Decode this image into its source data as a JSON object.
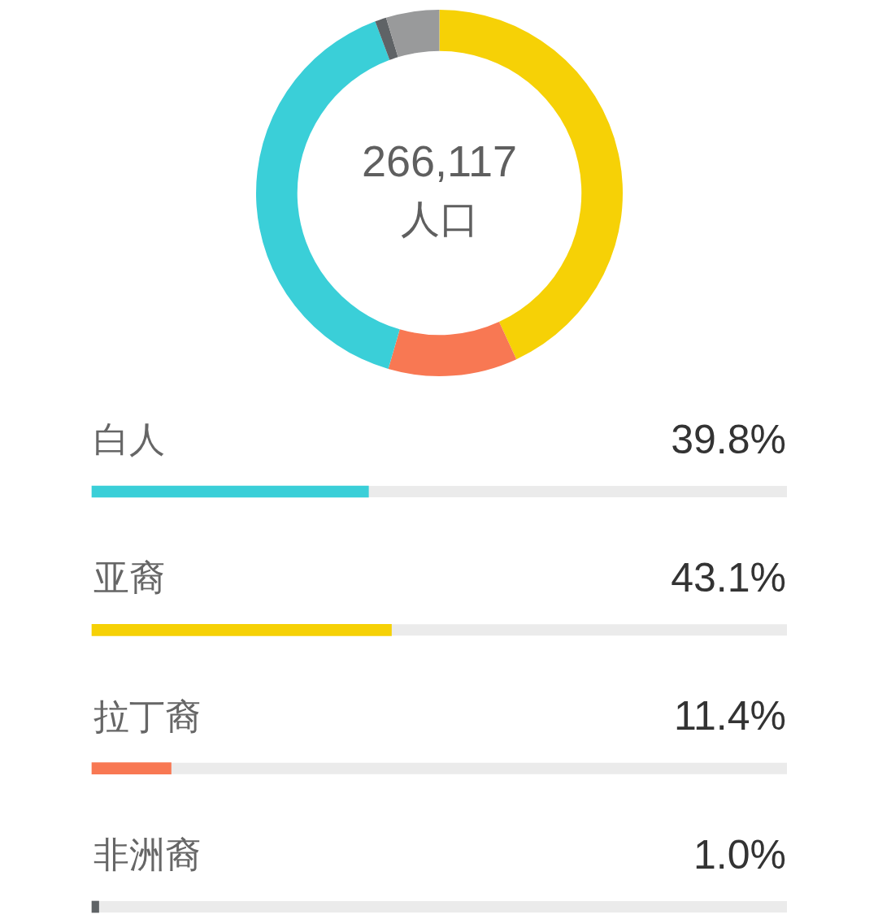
{
  "chart_data": [
    {
      "type": "donut",
      "categories": [
        null,
        null,
        null,
        null,
        null
      ],
      "values": [
        43.1,
        11.4,
        39.8,
        1.0,
        4.7
      ],
      "colors": [
        "#f6d106",
        "#f87853",
        "#3acfd8",
        "#5f6366",
        "#999a9b"
      ],
      "annotations": [
        "266,117",
        "人口"
      ]
    },
    {
      "type": "bar",
      "orientation": "horizontal",
      "categories": [
        "白人",
        "亚裔",
        "拉丁裔",
        "非洲裔"
      ],
      "values": [
        39.8,
        43.1,
        11.4,
        1.0
      ],
      "colors": [
        "#3acfd8",
        "#f6d106",
        "#f87853",
        "#5f6366"
      ],
      "xlim": [
        0,
        100
      ],
      "value_labels": [
        "39.8%",
        "43.1%",
        "11.4%",
        "1.0%"
      ],
      "tick_labels": "y"
    }
  ]
}
